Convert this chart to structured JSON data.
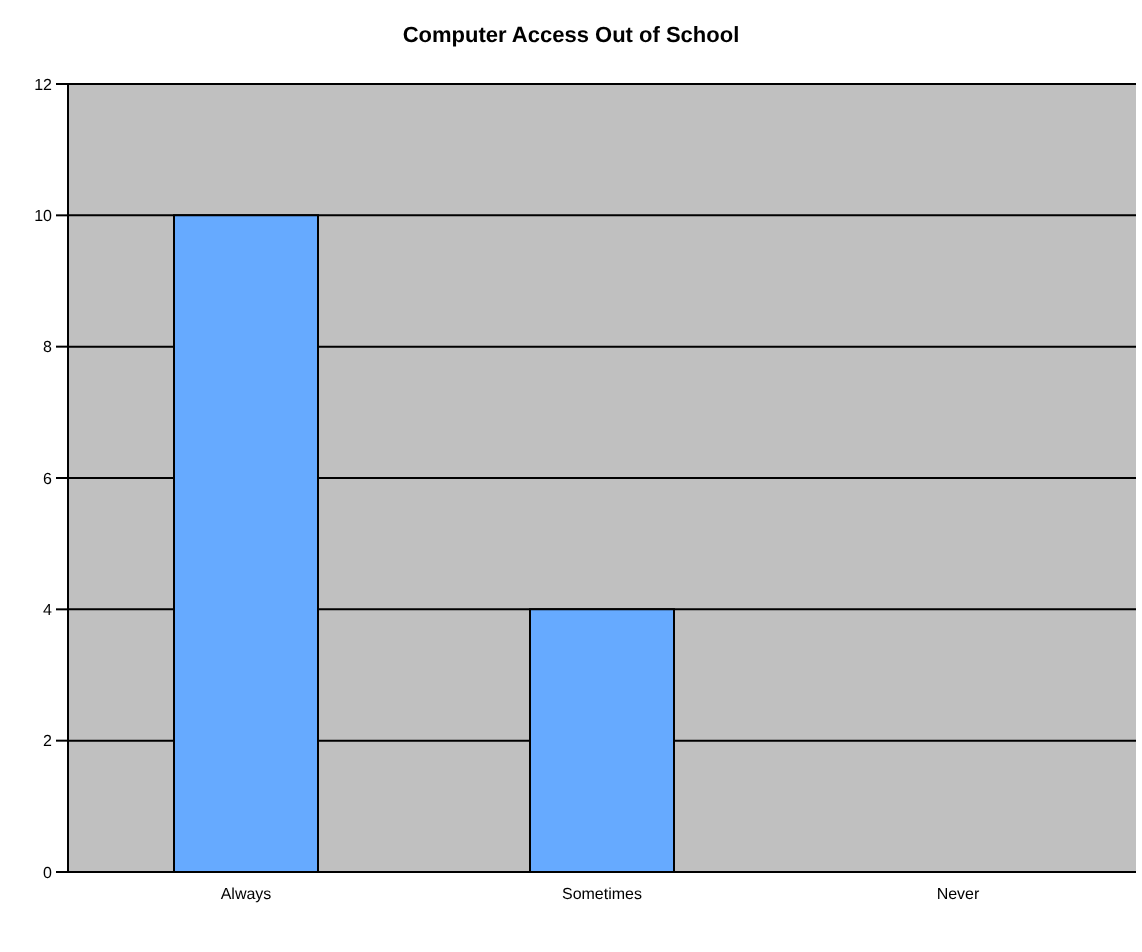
{
  "chart_data": {
    "type": "bar",
    "title": "Computer Access Out of School",
    "categories": [
      "Always",
      "Sometimes",
      "Never"
    ],
    "values": [
      10,
      4,
      0
    ],
    "color": "#66aaff",
    "ylim": [
      0,
      12
    ],
    "yticks": [
      0,
      2,
      4,
      6,
      8,
      10,
      12
    ],
    "grid": "y",
    "legend": false
  }
}
